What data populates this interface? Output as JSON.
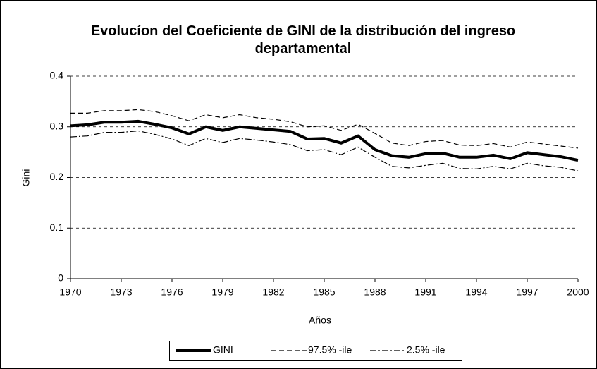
{
  "chart_data": {
    "type": "line",
    "title": "Evolucíon del Coeficiente de GINI de la distribución del ingreso departamental",
    "x_label": "Años",
    "y_label": "Gini",
    "x": [
      1970,
      1971,
      1972,
      1973,
      1974,
      1975,
      1976,
      1977,
      1978,
      1979,
      1980,
      1981,
      1982,
      1983,
      1984,
      1985,
      1986,
      1987,
      1988,
      1989,
      1990,
      1991,
      1992,
      1993,
      1994,
      1995,
      1996,
      1997,
      1998,
      1999,
      2000
    ],
    "series": [
      {
        "name": "GINI",
        "color": "#000000",
        "values": [
          0.302,
          0.304,
          0.309,
          0.309,
          0.311,
          0.305,
          0.298,
          0.286,
          0.3,
          0.293,
          0.3,
          0.297,
          0.294,
          0.291,
          0.276,
          0.277,
          0.268,
          0.282,
          0.255,
          0.243,
          0.24,
          0.247,
          0.248,
          0.24,
          0.24,
          0.244,
          0.237,
          0.249,
          0.245,
          0.241,
          0.234
        ]
      },
      {
        "name": "97.5% -ile",
        "color": "#000000",
        "values": [
          0.327,
          0.327,
          0.332,
          0.332,
          0.334,
          0.33,
          0.322,
          0.312,
          0.324,
          0.318,
          0.324,
          0.318,
          0.315,
          0.31,
          0.3,
          0.302,
          0.293,
          0.305,
          0.287,
          0.268,
          0.263,
          0.271,
          0.273,
          0.264,
          0.263,
          0.267,
          0.26,
          0.27,
          0.266,
          0.262,
          0.258
        ]
      },
      {
        "name": "2.5% -ile",
        "color": "#000000",
        "values": [
          0.28,
          0.282,
          0.289,
          0.289,
          0.292,
          0.285,
          0.276,
          0.263,
          0.277,
          0.269,
          0.277,
          0.274,
          0.27,
          0.265,
          0.253,
          0.255,
          0.245,
          0.26,
          0.24,
          0.222,
          0.219,
          0.224,
          0.228,
          0.218,
          0.217,
          0.222,
          0.217,
          0.228,
          0.223,
          0.22,
          0.213
        ]
      }
    ],
    "xlim": [
      1970,
      2000
    ],
    "xticks": [
      1970,
      1973,
      1976,
      1979,
      1982,
      1985,
      1988,
      1991,
      1994,
      1997,
      2000
    ],
    "ylim": [
      0,
      0.4
    ],
    "yticks": [
      0,
      0.1,
      0.2,
      0.3,
      0.4
    ],
    "grid": true,
    "legend": "bottom"
  }
}
